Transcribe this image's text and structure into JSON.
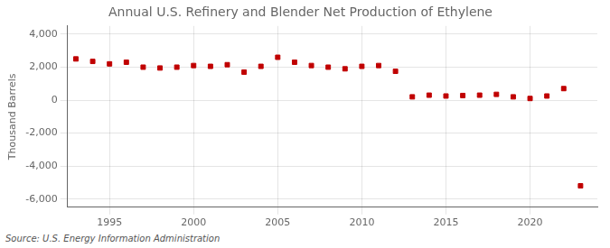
{
  "chart_data": {
    "type": "scatter",
    "title": "Annual U.S. Refinery and Blender Net Production of Ethylene",
    "ylabel": "Thousand Barrels",
    "source": "Source: U.S. Energy Information Administration",
    "x": [
      1993,
      1994,
      1995,
      1996,
      1997,
      1998,
      1999,
      2000,
      2001,
      2002,
      2003,
      2004,
      2005,
      2006,
      2007,
      2008,
      2009,
      2010,
      2011,
      2012,
      2013,
      2014,
      2015,
      2016,
      2017,
      2018,
      2019,
      2020,
      2021,
      2022,
      2023
    ],
    "values": [
      2500,
      2350,
      2200,
      2300,
      2000,
      1950,
      2000,
      2100,
      2050,
      2150,
      1700,
      2050,
      2600,
      2300,
      2100,
      2000,
      1900,
      2050,
      2100,
      1750,
      200,
      300,
      250,
      280,
      300,
      350,
      200,
      100,
      250,
      700,
      -5200
    ],
    "color": "#c00000",
    "marker": "square",
    "xlim": [
      1992.5,
      2024
    ],
    "xticks": [
      1995,
      2000,
      2005,
      2010,
      2015,
      2020
    ],
    "ylim": [
      -6500,
      4500
    ],
    "yticks": [
      {
        "value": -6000,
        "label": "-6,000"
      },
      {
        "value": -4000,
        "label": "-4,000"
      },
      {
        "value": -2000,
        "label": "-2,000"
      },
      0,
      {
        "value": 2000,
        "label": "2,000"
      },
      {
        "value": 4000,
        "label": "4,000"
      }
    ],
    "grid": true
  }
}
